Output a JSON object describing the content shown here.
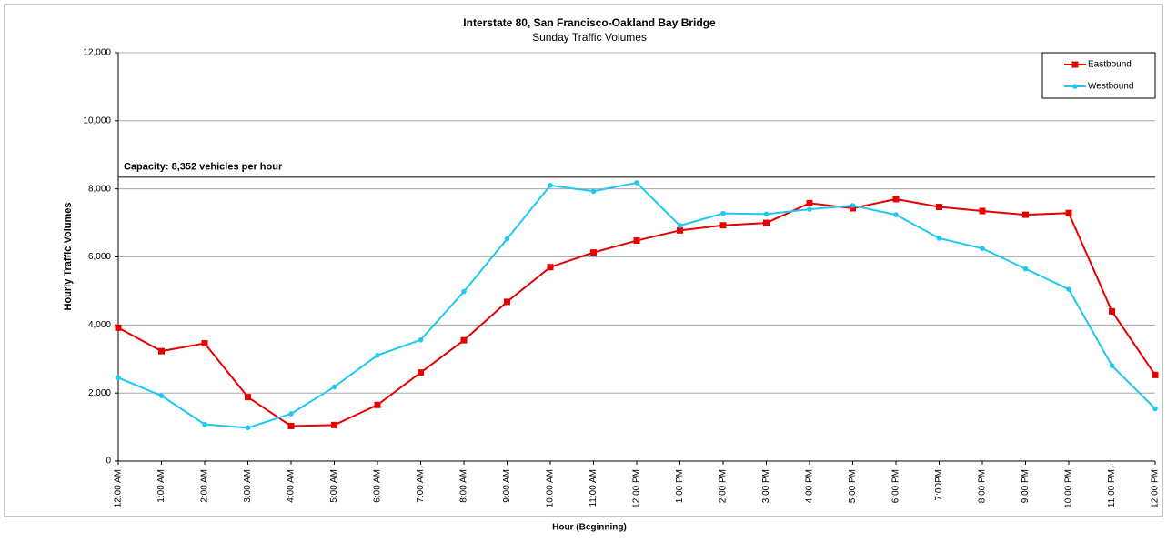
{
  "chart_data": {
    "type": "line",
    "title": "Interstate 80, San Francisco-Oakland Bay Bridge",
    "subtitle": "Sunday Traffic Volumes",
    "x_label": "Hour (Beginning)",
    "y_label": "Hourly Traffic Volumes",
    "categories": [
      "12:00 AM",
      "1:00 AM",
      "2:00 AM",
      "3:00 AM",
      "4:00 AM",
      "5:00 AM",
      "6:00 AM",
      "7:00 AM",
      "8:00 AM",
      "9:00 AM",
      "10:00 AM",
      "11:00 AM",
      "12:00 PM",
      "1:00 PM",
      "2:00 PM",
      "3:00 PM",
      "4:00 PM",
      "5:00 PM",
      "6:00 PM",
      "7:00PM",
      "8:00 PM",
      "9:00 PM",
      "10:00 PM",
      "11:00 PM",
      "12:00 PM"
    ],
    "series": [
      {
        "name": "Eastbound",
        "color": "#e60000",
        "marker": "square",
        "values": [
          3920,
          3230,
          3460,
          1880,
          1030,
          1060,
          1650,
          2600,
          3550,
          4680,
          5700,
          6130,
          6480,
          6780,
          6930,
          7000,
          7580,
          7430,
          7700,
          7470,
          7350,
          7240,
          7290,
          4400,
          2530
        ]
      },
      {
        "name": "Westbound",
        "color": "#1ec8f0",
        "marker": "circle",
        "values": [
          2450,
          1920,
          1080,
          980,
          1390,
          2180,
          3110,
          3560,
          4980,
          6530,
          8100,
          7930,
          8180,
          6920,
          7280,
          7260,
          7400,
          7510,
          7240,
          6550,
          6250,
          5650,
          5050,
          2800,
          1540
        ]
      }
    ],
    "capacity": 8352,
    "capacity_label": "Capacity: 8,352 vehicles per hour",
    "ylim": [
      0,
      12000
    ],
    "yticks": [
      0,
      {
        "value": 2000,
        "label": "2,000"
      },
      {
        "value": 4000,
        "label": "4,000"
      },
      {
        "value": 6000,
        "label": "6,000"
      },
      {
        "value": 8000,
        "label": "8,000"
      },
      {
        "value": 10000,
        "label": "10,000"
      },
      {
        "value": 12000,
        "label": "12,000"
      }
    ],
    "grid": true,
    "legend": "top-right"
  }
}
